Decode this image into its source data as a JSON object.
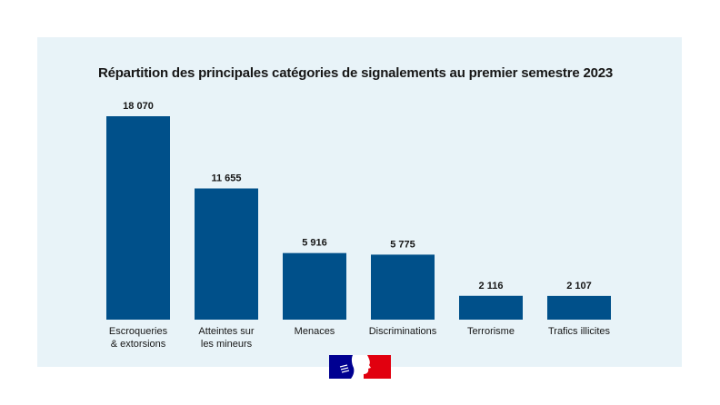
{
  "chart_data": {
    "type": "bar",
    "title": "Répartition des principales catégories de signalements au premier semestre 2023",
    "categories": [
      [
        "Escroqueries",
        "& extorsions"
      ],
      [
        "Atteintes sur",
        "les mineurs"
      ],
      [
        "Menaces"
      ],
      [
        "Discriminations"
      ],
      [
        "Terrorisme"
      ],
      [
        "Trafics illicites"
      ]
    ],
    "values": [
      18070,
      11655,
      5916,
      5775,
      2116,
      2107
    ],
    "data_labels": [
      "18 070",
      "11 655",
      "5 916",
      "5 775",
      "2 116",
      "2 107"
    ],
    "xlabel": "",
    "ylabel": "",
    "ylim": [
      0,
      18070
    ],
    "grid": false,
    "bar_color": "#00508a",
    "background_color": "#e8f3f8"
  },
  "logo": {
    "name": "Marianne republique francaise logo",
    "colors": [
      "#000091",
      "#e1000f"
    ]
  }
}
